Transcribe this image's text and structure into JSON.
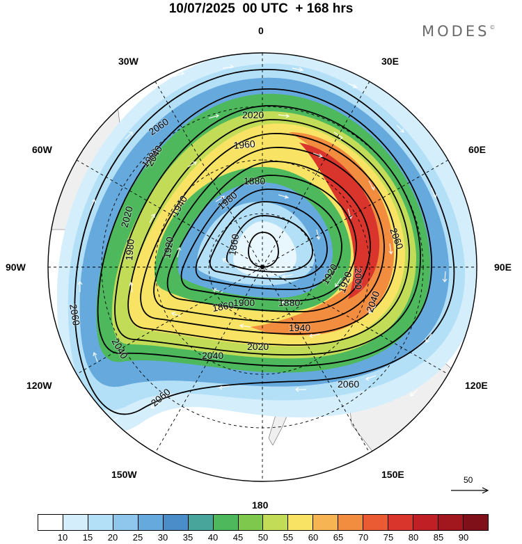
{
  "header": {
    "title": "10/07/2025  00 UTC  + 168 hrs",
    "brand": "MODES",
    "brand_mark": "©"
  },
  "map": {
    "projection": "polar stereographic, southern hemisphere",
    "longitude_labels": {
      "top": "0",
      "bottom": "180",
      "left": "90W",
      "right": "90E",
      "top_left": "30W",
      "top_right": "30E",
      "upper_left": "60W",
      "upper_right": "60E",
      "lower_left": "120W",
      "lower_right": "120E",
      "bottom_left": "150W",
      "bottom_right": "150E"
    },
    "contour_labels": [
      "2060",
      "2020",
      "1960",
      "1980",
      "2040",
      "1880",
      "1940",
      "2020",
      "1920",
      "1980",
      "1860",
      "2060",
      "1920",
      "2000",
      "1980",
      "1860",
      "1900",
      "1880",
      "1920",
      "2060",
      "2040",
      "1940",
      "2040",
      "2020",
      "2040",
      "2060",
      "2060"
    ],
    "colors": {
      "land": "#efefef",
      "ocean_white": "#ffffff",
      "contour": "#000000",
      "grid": "#000000"
    }
  },
  "reference_vector": {
    "label": "50"
  },
  "colorbar": {
    "colors": [
      "#ffffff",
      "#d4eefc",
      "#b4e0f7",
      "#8ec6ec",
      "#66a9dd",
      "#4b8dc8",
      "#47a59b",
      "#4db85c",
      "#7ec84e",
      "#c2dc58",
      "#f8e364",
      "#f7b453",
      "#f28c3f",
      "#ea5a33",
      "#d9352c",
      "#c11f26",
      "#a2161e",
      "#7f101a"
    ],
    "ticks": [
      "10",
      "15",
      "20",
      "25",
      "30",
      "35",
      "40",
      "45",
      "50",
      "55",
      "60",
      "65",
      "70",
      "75",
      "80",
      "85",
      "90"
    ]
  }
}
